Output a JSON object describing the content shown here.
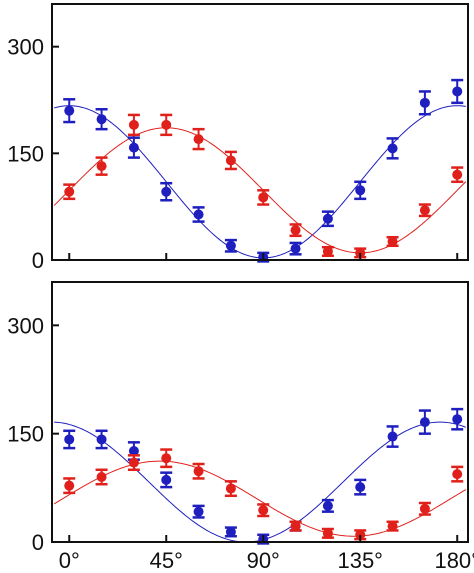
{
  "chart_data": [
    {
      "type": "scatter",
      "title": "",
      "xlabel": "",
      "ylabel": "",
      "xlim": [
        -8,
        185
      ],
      "ylim": [
        0,
        360
      ],
      "yticks": [
        0,
        150,
        300
      ],
      "ytick_labels": [
        "0",
        "150",
        "300"
      ],
      "xtick_labels_visible": false,
      "grid": false,
      "series": [
        {
          "color": "#1f1fbf",
          "x": [
            0,
            15,
            30,
            45,
            60,
            75,
            90,
            105,
            120,
            135,
            150,
            165,
            180
          ],
          "y": [
            210,
            198,
            158,
            96,
            64,
            20,
            4,
            16,
            58,
            98,
            157,
            221,
            237
          ],
          "err": [
            16,
            14,
            14,
            12,
            10,
            8,
            6,
            8,
            10,
            12,
            14,
            16,
            16
          ],
          "fit": {
            "amplitude": 107,
            "offset": 110,
            "phase_deg": 0,
            "period_deg": 180
          }
        },
        {
          "color": "#e0211b",
          "x": [
            0,
            15,
            30,
            45,
            60,
            75,
            90,
            105,
            120,
            135,
            150,
            165,
            180
          ],
          "y": [
            96,
            132,
            190,
            190,
            170,
            140,
            88,
            42,
            12,
            10,
            26,
            70,
            120
          ],
          "err": [
            10,
            12,
            14,
            14,
            14,
            12,
            10,
            8,
            6,
            6,
            6,
            8,
            10
          ],
          "fit": {
            "amplitude": 88,
            "offset": 98,
            "phase_deg": 45,
            "period_deg": 180
          }
        }
      ]
    },
    {
      "type": "scatter",
      "title": "",
      "xlabel": "",
      "ylabel": "",
      "xlim": [
        -8,
        185
      ],
      "ylim": [
        0,
        360
      ],
      "yticks": [
        0,
        150,
        300
      ],
      "ytick_labels": [
        "0",
        "150",
        "300"
      ],
      "xticks": [
        0,
        45,
        90,
        135,
        180
      ],
      "xtick_labels": [
        "0°",
        "45°",
        "90°",
        "135°",
        "180°"
      ],
      "grid": false,
      "series": [
        {
          "color": "#1f1fbf",
          "x": [
            0,
            15,
            30,
            45,
            60,
            75,
            90,
            105,
            120,
            135,
            150,
            165,
            180
          ],
          "y": [
            142,
            142,
            126,
            86,
            42,
            14,
            4,
            22,
            50,
            76,
            146,
            166,
            170
          ],
          "err": [
            12,
            12,
            12,
            10,
            8,
            6,
            6,
            6,
            8,
            10,
            14,
            16,
            14
          ],
          "fit": {
            "amplitude": 83,
            "offset": 83,
            "phase_deg": -8,
            "period_deg": 180
          }
        },
        {
          "color": "#e0211b",
          "x": [
            0,
            15,
            30,
            45,
            60,
            75,
            90,
            105,
            120,
            135,
            150,
            165,
            180
          ],
          "y": [
            78,
            90,
            110,
            116,
            98,
            74,
            44,
            22,
            12,
            10,
            22,
            46,
            94
          ],
          "err": [
            10,
            10,
            10,
            12,
            10,
            10,
            8,
            6,
            6,
            6,
            6,
            8,
            10
          ],
          "fit": {
            "amplitude": 52,
            "offset": 60,
            "phase_deg": 42,
            "period_deg": 180
          }
        }
      ]
    }
  ]
}
